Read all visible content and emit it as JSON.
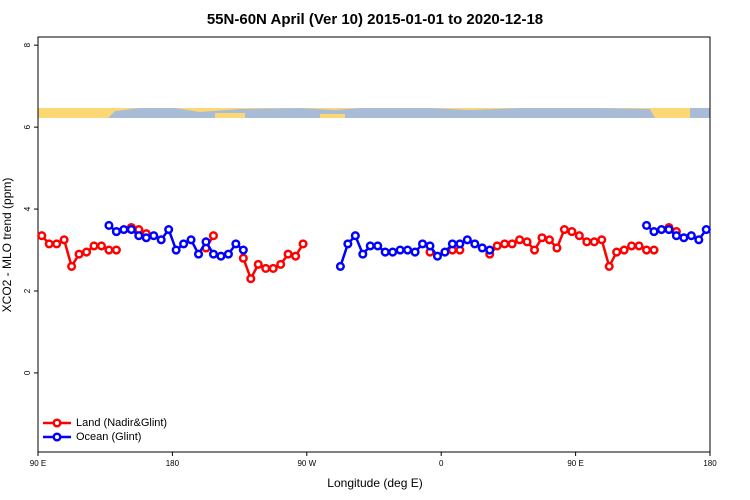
{
  "chart_data": {
    "type": "line",
    "title": "55N-60N April (Ver 10)   2015-01-01 to 2020-12-18",
    "x_label": "Longitude (deg E)",
    "y_label": "XCO2 - MLO trend (ppm)",
    "xlim": [
      90,
      540
    ],
    "ylim": [
      -1.93,
      8.2
    ],
    "xticks": [
      {
        "value": 90,
        "label": "90 E"
      },
      {
        "value": 180,
        "label": "180"
      },
      {
        "value": 270,
        "label": "90 W"
      },
      {
        "value": 360,
        "label": "0"
      },
      {
        "value": 450,
        "label": "90 E"
      },
      {
        "value": 540,
        "label": "180"
      }
    ],
    "yticks": [
      0,
      2,
      4,
      6,
      8
    ],
    "legend": "bottom-left",
    "series": [
      {
        "name": "Land (Nadir&Glint)",
        "color": "#ff0000",
        "x": [
          92.5,
          97.5,
          102.5,
          107.5,
          112.5,
          117.5,
          122.5,
          127.5,
          132.5,
          137.5,
          142.5,
          147.5,
          152.5,
          157.5,
          162.5,
          167.5,
          202.5,
          207.5,
          212.5,
          227.5,
          232.5,
          237.5,
          242.5,
          247.5,
          252.5,
          257.5,
          262.5,
          267.5,
          272.5,
          352.5,
          357.5,
          367.5,
          372.5,
          377.5,
          392.5,
          397.5,
          402.5,
          407.5,
          412.5,
          417.5,
          422.5,
          427.5,
          432.5,
          437.5,
          442.5,
          447.5,
          452.5,
          457.5,
          462.5,
          467.5,
          472.5,
          477.5,
          482.5,
          487.5,
          492.5,
          497.5,
          502.5,
          507.5,
          512.5,
          517.5
        ],
        "values": [
          3.35,
          3.15,
          3.15,
          3.25,
          2.6,
          2.9,
          2.95,
          3.1,
          3.1,
          3.0,
          3.0,
          null,
          3.55,
          3.5,
          3.4,
          null,
          3.05,
          3.35,
          null,
          2.8,
          2.3,
          2.65,
          2.55,
          2.55,
          2.65,
          2.9,
          2.85,
          3.15,
          null,
          2.95,
          null,
          3.0,
          3.0,
          null,
          2.9,
          3.1,
          3.15,
          3.15,
          3.25,
          3.2,
          3.0,
          3.3,
          3.25,
          3.05,
          3.5,
          3.45,
          3.35,
          3.2,
          3.2,
          3.25,
          2.6,
          2.95,
          3.0,
          3.1,
          3.1,
          3.0,
          3.0,
          null,
          3.55,
          3.45
        ]
      },
      {
        "name": "Ocean (Glint)",
        "color": "#0000ff",
        "x": [
          137.5,
          142.5,
          147.5,
          152.5,
          157.5,
          162.5,
          167.5,
          172.5,
          177.5,
          182.5,
          187.5,
          192.5,
          197.5,
          202.5,
          207.5,
          212.5,
          217.5,
          222.5,
          227.5,
          232.5,
          292.5,
          297.5,
          302.5,
          307.5,
          312.5,
          317.5,
          322.5,
          327.5,
          332.5,
          337.5,
          342.5,
          347.5,
          352.5,
          357.5,
          362.5,
          367.5,
          372.5,
          377.5,
          382.5,
          387.5,
          392.5,
          397.5,
          497.5,
          502.5,
          507.5,
          512.5,
          517.5,
          522.5,
          527.5,
          532.5,
          537.5
        ],
        "values": [
          3.6,
          3.45,
          3.5,
          3.5,
          3.35,
          3.3,
          3.35,
          3.25,
          3.5,
          3.0,
          3.15,
          3.25,
          2.9,
          3.2,
          2.9,
          2.85,
          2.9,
          3.15,
          3.0,
          null,
          2.6,
          3.15,
          3.35,
          2.9,
          3.1,
          3.1,
          2.95,
          2.95,
          3.0,
          3.0,
          2.95,
          3.15,
          3.1,
          2.85,
          2.95,
          3.15,
          3.15,
          3.25,
          3.15,
          3.05,
          3.0,
          null,
          3.6,
          3.45,
          3.5,
          3.5,
          3.35,
          3.3,
          3.35,
          3.25,
          3.5
        ]
      }
    ]
  }
}
